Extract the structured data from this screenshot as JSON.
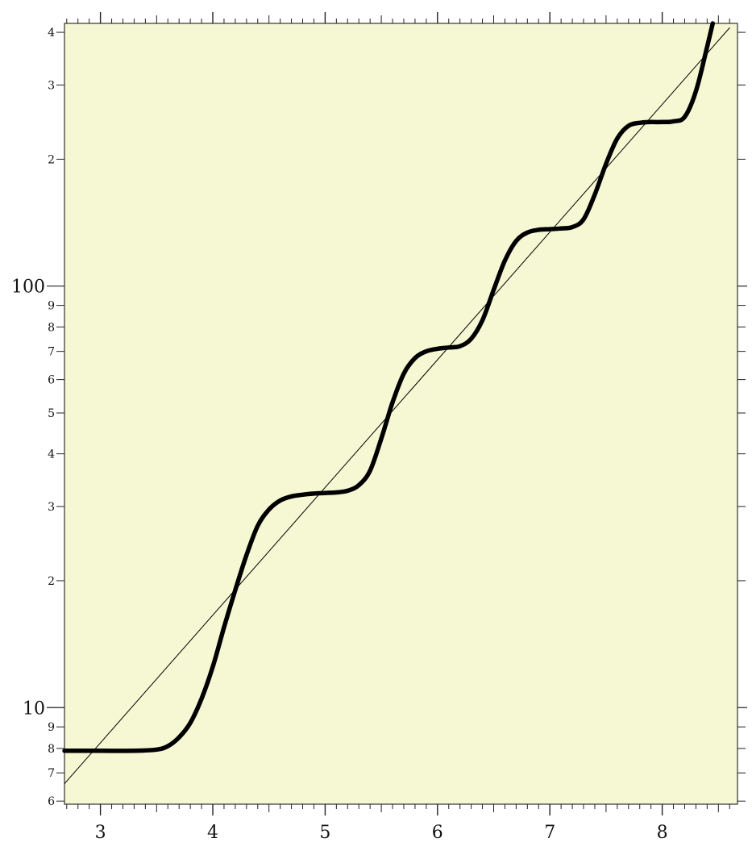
{
  "chart_data": {
    "type": "line",
    "title": "",
    "xlabel": "",
    "ylabel": "",
    "y_scale": "log",
    "xlim": [
      2.68,
      8.67
    ],
    "ylim": [
      5.9,
      420
    ],
    "grid": false,
    "legend": "none",
    "x_major_ticks": [
      3,
      4,
      5,
      6,
      7,
      8
    ],
    "x_tick_labels": [
      "3",
      "4",
      "5",
      "6",
      "7",
      "8"
    ],
    "y_major_ticks": [
      10,
      100
    ],
    "y_major_labels": [
      "10",
      "100"
    ],
    "y_minor_ticks": [
      6,
      7,
      8,
      9,
      20,
      30,
      40,
      50,
      60,
      70,
      80,
      90,
      200,
      300,
      400
    ],
    "y_minor_labels": [
      "6",
      "7",
      "8",
      "9",
      "2",
      "3",
      "4",
      "5",
      "6",
      "7",
      "8",
      "9",
      "2",
      "3",
      "4"
    ],
    "series": [
      {
        "style": "thick",
        "x": [
          2.68,
          3.0,
          3.3,
          3.5,
          3.6,
          3.7,
          3.8,
          3.9,
          4.0,
          4.1,
          4.2,
          4.3,
          4.4,
          4.5,
          4.6,
          4.7,
          4.8,
          4.9,
          5.0,
          5.1,
          5.2,
          5.3,
          5.4,
          5.5,
          5.6,
          5.7,
          5.8,
          5.9,
          6.0,
          6.1,
          6.2,
          6.3,
          6.4,
          6.5,
          6.6,
          6.7,
          6.8,
          6.9,
          7.0,
          7.1,
          7.2,
          7.3,
          7.4,
          7.5,
          7.6,
          7.7,
          7.8,
          7.9,
          8.0,
          8.1,
          8.2,
          8.3,
          8.4,
          8.45
        ],
        "y": [
          7.9,
          7.9,
          7.9,
          7.95,
          8.1,
          8.5,
          9.2,
          10.5,
          12.5,
          15.5,
          19.0,
          23.0,
          27.0,
          29.5,
          31.0,
          31.7,
          32.0,
          32.2,
          32.3,
          32.4,
          32.7,
          33.7,
          36.5,
          43.5,
          53.0,
          62.0,
          67.5,
          70.0,
          71.0,
          71.5,
          72.0,
          75.0,
          83.0,
          98.0,
          115.0,
          128.0,
          134.0,
          136.0,
          136.5,
          137.0,
          138.0,
          144.0,
          165.0,
          195.0,
          224.0,
          240.0,
          244.0,
          245.0,
          245.0,
          246.0,
          252.0,
          290.0,
          370.0,
          420.0
        ]
      },
      {
        "style": "thin",
        "x": [
          2.68,
          8.6
        ],
        "y": [
          6.6,
          410
        ]
      }
    ]
  }
}
